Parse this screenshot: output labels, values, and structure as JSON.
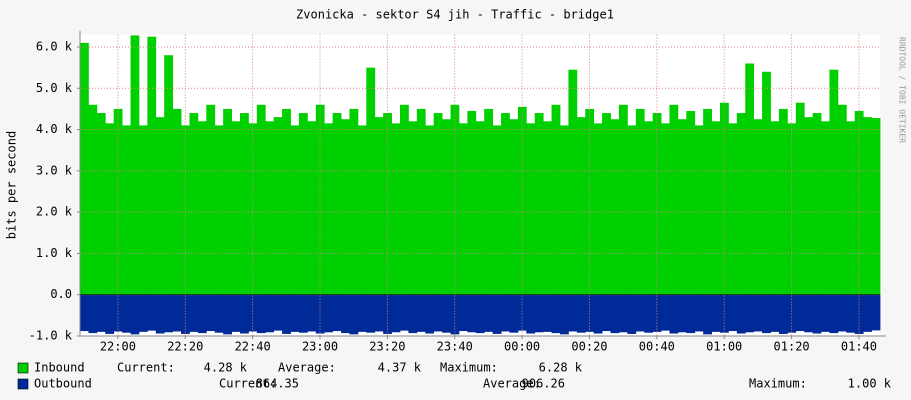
{
  "chart_data": {
    "type": "area",
    "title": "Zvonicka - sektor S4 jih - Traffic - bridge1",
    "y_label": "bits per second",
    "watermark": "RRDTOOL / TOBI OETIKER",
    "grid": true,
    "ylim": [
      -1000,
      6300
    ],
    "yticks": [
      {
        "value": -1000,
        "label": "-1.0 k"
      },
      {
        "value": 0,
        "label": "0.0"
      },
      {
        "value": 1000,
        "label": "1.0 k"
      },
      {
        "value": 2000,
        "label": "2.0 k"
      },
      {
        "value": 3000,
        "label": "3.0 k"
      },
      {
        "value": 4000,
        "label": "4.0 k"
      },
      {
        "value": 5000,
        "label": "5.0 k"
      },
      {
        "value": 6000,
        "label": "6.0 k"
      }
    ],
    "categories": [
      null,
      null,
      null,
      null,
      "22:00",
      null,
      null,
      null,
      null,
      null,
      null,
      null,
      "22:20",
      null,
      null,
      null,
      null,
      null,
      null,
      null,
      "22:40",
      null,
      null,
      null,
      null,
      null,
      null,
      null,
      "23:00",
      null,
      null,
      null,
      null,
      null,
      null,
      null,
      "23:20",
      null,
      null,
      null,
      null,
      null,
      null,
      null,
      "23:40",
      null,
      null,
      null,
      null,
      null,
      null,
      null,
      "00:00",
      null,
      null,
      null,
      null,
      null,
      null,
      null,
      "00:20",
      null,
      null,
      null,
      null,
      null,
      null,
      null,
      "00:40",
      null,
      null,
      null,
      null,
      null,
      null,
      null,
      "01:00",
      null,
      null,
      null,
      null,
      null,
      null,
      null,
      "01:20",
      null,
      null,
      null,
      null,
      null,
      null,
      null,
      "01:40",
      null,
      null
    ],
    "stat_labels": {
      "current": "Current:",
      "average": "Average:",
      "maximum": "Maximum:"
    },
    "series": [
      {
        "name": "Inbound",
        "color": "#00CF00",
        "stats": {
          "current": "4.28 k",
          "average": "4.37 k",
          "maximum": "6.28 k"
        },
        "values": [
          6100,
          4600,
          4400,
          4150,
          4500,
          4100,
          6280,
          4100,
          6250,
          4300,
          5800,
          4500,
          4100,
          4400,
          4200,
          4600,
          4100,
          4500,
          4200,
          4400,
          4150,
          4600,
          4200,
          4300,
          4500,
          4100,
          4400,
          4200,
          4600,
          4150,
          4400,
          4250,
          4500,
          4100,
          5500,
          4300,
          4400,
          4150,
          4600,
          4200,
          4500,
          4100,
          4400,
          4250,
          4600,
          4150,
          4450,
          4200,
          4500,
          4100,
          4400,
          4250,
          4550,
          4150,
          4400,
          4200,
          4600,
          4100,
          5450,
          4300,
          4500,
          4150,
          4400,
          4250,
          4600,
          4100,
          4500,
          4200,
          4400,
          4150,
          4600,
          4250,
          4450,
          4100,
          4500,
          4200,
          4650,
          4150,
          4400,
          5600,
          4250,
          5400,
          4200,
          4500,
          4150,
          4650,
          4300,
          4400,
          4200,
          5450,
          4600,
          4200,
          4450,
          4300,
          4280
        ]
      },
      {
        "name": "Outbound",
        "color": "#002A97",
        "stats": {
          "current": "864.35",
          "average": "906.26",
          "maximum": "1.00 k"
        },
        "values": [
          -880,
          -930,
          -900,
          -950,
          -890,
          -920,
          -960,
          -900,
          -870,
          -940,
          -910,
          -890,
          -950,
          -900,
          -930,
          -880,
          -920,
          -960,
          -900,
          -940,
          -890,
          -930,
          -910,
          -870,
          -950,
          -900,
          -920,
          -890,
          -940,
          -910,
          -880,
          -930,
          -960,
          -900,
          -920,
          -890,
          -950,
          -910,
          -870,
          -930,
          -900,
          -940,
          -890,
          -920,
          -960,
          -880,
          -910,
          -930,
          -900,
          -950,
          -890,
          -920,
          -870,
          -940,
          -910,
          -900,
          -930,
          -960,
          -890,
          -920,
          -900,
          -940,
          -880,
          -930,
          -910,
          -950,
          -890,
          -920,
          -900,
          -870,
          -940,
          -910,
          -930,
          -890,
          -960,
          -900,
          -920,
          -880,
          -940,
          -910,
          -890,
          -930,
          -900,
          -950,
          -920,
          -880,
          -910,
          -940,
          -900,
          -930,
          -890,
          -920,
          -950,
          -900,
          -864.35
        ]
      }
    ]
  }
}
